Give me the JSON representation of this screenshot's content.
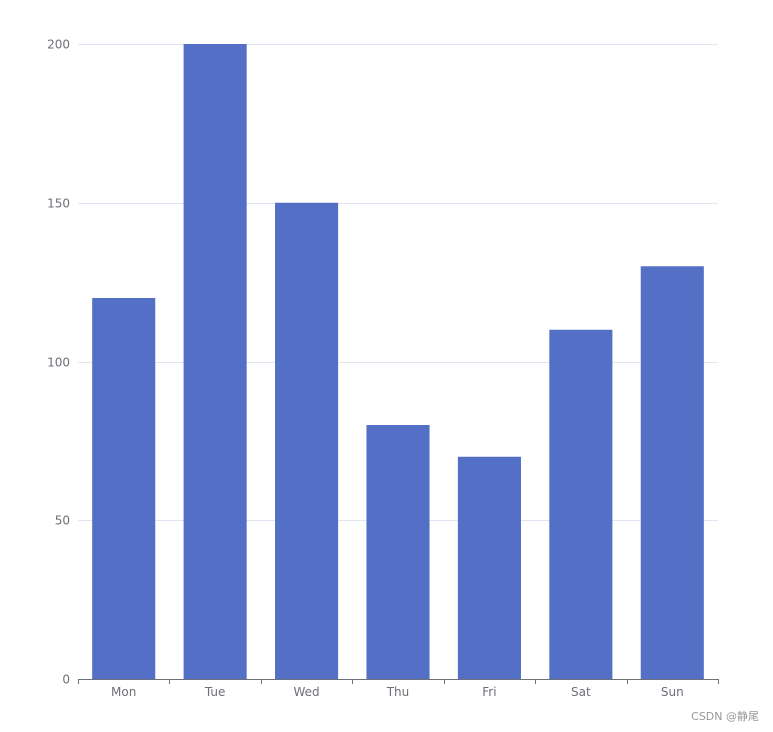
{
  "chart_data": {
    "type": "bar",
    "title": "",
    "xlabel": "",
    "ylabel": "",
    "categories": [
      "Mon",
      "Tue",
      "Wed",
      "Thu",
      "Fri",
      "Sat",
      "Sun"
    ],
    "series": [
      {
        "values": [
          120,
          200,
          150,
          80,
          70,
          110,
          130
        ]
      }
    ],
    "ylim": [
      0,
      200
    ],
    "yticks": [
      0,
      50,
      100,
      150,
      200
    ],
    "grid": true,
    "legend": "none",
    "bar_color": "#5470c6",
    "grid_color": "#e0e6f1",
    "axis_color": "#6e7079"
  },
  "watermark": "CSDN @静尾"
}
